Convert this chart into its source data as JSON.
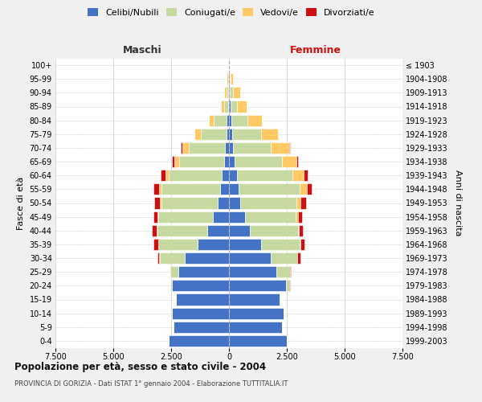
{
  "age_groups": [
    "0-4",
    "5-9",
    "10-14",
    "15-19",
    "20-24",
    "25-29",
    "30-34",
    "35-39",
    "40-44",
    "45-49",
    "50-54",
    "55-59",
    "60-64",
    "65-69",
    "70-74",
    "75-79",
    "80-84",
    "85-89",
    "90-94",
    "95-99",
    "100+"
  ],
  "birth_years": [
    "1999-2003",
    "1994-1998",
    "1989-1993",
    "1984-1988",
    "1979-1983",
    "1974-1978",
    "1969-1973",
    "1964-1968",
    "1959-1963",
    "1954-1958",
    "1949-1953",
    "1944-1948",
    "1939-1943",
    "1934-1938",
    "1929-1933",
    "1924-1928",
    "1919-1923",
    "1914-1918",
    "1909-1913",
    "1904-1908",
    "≤ 1903"
  ],
  "colors": {
    "celibi": "#4472c4",
    "coniugati": "#c5d9a0",
    "vedovi": "#ffc966",
    "divorziati": "#cc1111"
  },
  "males": {
    "celibi": [
      2600,
      2400,
      2450,
      2300,
      2450,
      2200,
      1900,
      1350,
      950,
      700,
      480,
      380,
      320,
      220,
      180,
      120,
      90,
      50,
      30,
      20,
      10
    ],
    "coniugati": [
      0,
      0,
      0,
      0,
      70,
      350,
      1100,
      1700,
      2150,
      2350,
      2450,
      2550,
      2300,
      1950,
      1550,
      1100,
      580,
      170,
      80,
      25,
      5
    ],
    "vedovi": [
      0,
      0,
      0,
      0,
      2,
      8,
      8,
      8,
      10,
      25,
      50,
      90,
      140,
      200,
      300,
      260,
      200,
      110,
      90,
      50,
      5
    ],
    "divorziati": [
      0,
      0,
      0,
      0,
      4,
      12,
      90,
      190,
      210,
      190,
      260,
      240,
      190,
      80,
      45,
      15,
      12,
      8,
      8,
      3,
      0
    ]
  },
  "females": {
    "celibi": [
      2500,
      2300,
      2350,
      2200,
      2450,
      2050,
      1800,
      1400,
      920,
      680,
      480,
      420,
      350,
      250,
      170,
      130,
      90,
      70,
      50,
      25,
      15
    ],
    "coniugati": [
      0,
      0,
      0,
      5,
      160,
      580,
      1150,
      1650,
      2050,
      2200,
      2430,
      2620,
      2400,
      2050,
      1650,
      1250,
      700,
      270,
      110,
      40,
      5
    ],
    "vedovi": [
      0,
      0,
      0,
      0,
      4,
      12,
      18,
      25,
      40,
      90,
      175,
      320,
      480,
      630,
      780,
      730,
      630,
      420,
      310,
      110,
      20
    ],
    "divorziati": [
      0,
      0,
      0,
      0,
      8,
      18,
      115,
      195,
      195,
      190,
      250,
      210,
      170,
      55,
      25,
      8,
      8,
      8,
      8,
      4,
      0
    ]
  },
  "xlim": 7500,
  "title": "Popolazione per età, sesso e stato civile - 2004",
  "subtitle": "PROVINCIA DI GORIZIA - Dati ISTAT 1° gennaio 2004 - Elaborazione TUTTITALIA.IT",
  "label_maschi": "Maschi",
  "label_femmine": "Femmine",
  "ylabel_left": "Fasce di età",
  "ylabel_right": "Anni di nascita",
  "legend_labels": [
    "Celibi/Nubili",
    "Coniugati/e",
    "Vedovi/e",
    "Divorziati/e"
  ],
  "bg_color": "#f0f0f0",
  "plot_bg": "#ffffff",
  "xtick_labels": [
    "7.500",
    "5.000",
    "2.500",
    "0",
    "2.500",
    "5.000",
    "7.500"
  ],
  "xtick_vals": [
    -7500,
    -5000,
    -2500,
    0,
    2500,
    5000,
    7500
  ]
}
